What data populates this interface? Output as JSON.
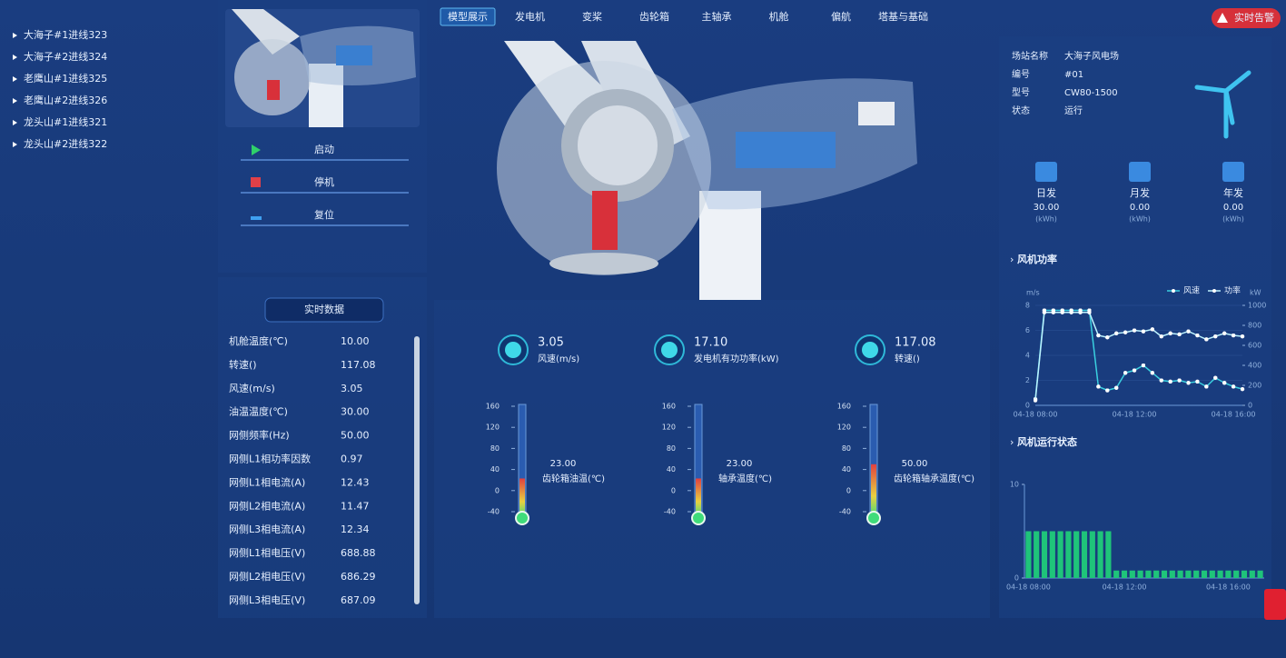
{
  "sidebar": {
    "items": [
      "大海子#1进线323",
      "大海子#2进线324",
      "老鹰山#1进线325",
      "老鹰山#2进线326",
      "龙头山#1进线321",
      "龙头山#2进线322"
    ],
    "selected": 2
  },
  "nav": {
    "tabs": [
      "模型展示",
      "发电机",
      "变桨",
      "齿轮箱",
      "主轴承",
      "机舱",
      "偏航",
      "塔基与基础"
    ],
    "active": 0
  },
  "alert_button": "实时告警",
  "controls": [
    "启动",
    "停机",
    "复位"
  ],
  "realtime": {
    "title": "实时数据",
    "rows": [
      [
        "机舱温度(℃)",
        "10.00"
      ],
      [
        "转速()",
        "117.08"
      ],
      [
        "风速(m/s)",
        "3.05"
      ],
      [
        "油温温度(℃)",
        "30.00"
      ],
      [
        "网侧频率(Hz)",
        "50.00"
      ],
      [
        "网侧L1相功率因数",
        "0.97"
      ],
      [
        "网侧L1相电流(A)",
        "12.43"
      ],
      [
        "网侧L2相电流(A)",
        "11.47"
      ],
      [
        "网侧L3相电流(A)",
        "12.34"
      ],
      [
        "网侧L1相电压(V)",
        "688.88"
      ],
      [
        "网侧L2相电压(V)",
        "686.29"
      ],
      [
        "网侧L3相电压(V)",
        "687.09"
      ]
    ]
  },
  "metrics": [
    {
      "value": "3.05",
      "label": "风速(m/s)"
    },
    {
      "value": "17.10",
      "label": "发电机有功功率(kW)"
    },
    {
      "value": "117.08",
      "label": "转速()"
    }
  ],
  "info": {
    "rows": [
      [
        "场站名称",
        "大海子风电场"
      ],
      [
        "编号",
        "#01"
      ],
      [
        "型号",
        "CW80-1500"
      ],
      [
        "状态",
        "运行"
      ]
    ]
  },
  "production": [
    {
      "label": "日发",
      "value": "30.00",
      "unit": "(kWh)"
    },
    {
      "label": "月发",
      "value": "0.00",
      "unit": "(kWh)"
    },
    {
      "label": "年发",
      "value": "0.00",
      "unit": "(kWh)"
    }
  ],
  "chart_data": [
    {
      "type": "thermometer",
      "title": "齿轮箱油温(℃)",
      "values": [
        23
      ],
      "value_labels": [
        "23.00"
      ],
      "ylim": [
        -40,
        160
      ],
      "yticks": [
        160,
        120,
        80,
        40,
        0,
        -40
      ]
    },
    {
      "type": "thermometer",
      "title": "轴承温度(℃)",
      "values": [
        23
      ],
      "value_labels": [
        "23.00"
      ],
      "ylim": [
        -40,
        160
      ],
      "yticks": [
        160,
        120,
        80,
        40,
        0,
        -40
      ]
    },
    {
      "type": "thermometer",
      "title": "齿轮箱轴承温度(℃)",
      "values": [
        50
      ],
      "value_labels": [
        "50.00"
      ],
      "ylim": [
        -40,
        160
      ],
      "yticks": [
        160,
        120,
        80,
        40,
        0,
        -40
      ]
    },
    {
      "type": "line",
      "title": "风机功率",
      "ylabel": "m/s",
      "y2label": "kW",
      "categories": [
        "04-18 08:00",
        null,
        null,
        null,
        null,
        null,
        null,
        null,
        null,
        null,
        null,
        "04-18 12:00",
        null,
        null,
        null,
        null,
        null,
        null,
        null,
        null,
        null,
        null,
        "04-18 16:00",
        null
      ],
      "series": [
        {
          "name": "风速",
          "color": "#3ad0e0",
          "values": [
            0.5,
            7.6,
            7.6,
            7.6,
            7.6,
            7.6,
            7.6,
            1.5,
            1.2,
            1.4,
            2.6,
            2.8,
            3.2,
            2.6,
            2.0,
            1.9,
            2.0,
            1.8,
            1.9,
            1.5,
            2.2,
            1.8,
            1.5,
            1.3
          ]
        },
        {
          "name": "功率",
          "color": "#bdf3ff",
          "axis": "y2",
          "values": [
            50,
            930,
            930,
            930,
            930,
            930,
            930,
            700,
            680,
            720,
            730,
            750,
            740,
            760,
            690,
            720,
            710,
            740,
            700,
            660,
            690,
            720,
            700,
            690
          ]
        }
      ],
      "ylim": [
        0,
        8
      ],
      "yticks": [
        0,
        2,
        4,
        6,
        8
      ],
      "y2lim": [
        0,
        1000
      ],
      "y2ticks": [
        0,
        200,
        400,
        600,
        800,
        1000
      ]
    },
    {
      "type": "bar",
      "title": "风机运行状态",
      "color": "#1fc47a",
      "categories": [
        "04-18 08:00",
        null,
        null,
        null,
        null,
        null,
        null,
        null,
        null,
        null,
        null,
        null,
        "04-18 12:00",
        null,
        null,
        null,
        null,
        null,
        null,
        null,
        null,
        null,
        null,
        null,
        null,
        "04-18 16:00",
        null,
        null,
        null,
        null
      ],
      "values": [
        5,
        5,
        5,
        5,
        5,
        5,
        5,
        5,
        5,
        5,
        5,
        0.8,
        0.8,
        0.8,
        0.8,
        0.8,
        0.8,
        0.8,
        0.8,
        0.8,
        0.8,
        0.8,
        0.8,
        0.8,
        0.8,
        0.8,
        0.8,
        0.8,
        0.8,
        0.8
      ],
      "ylim": [
        0,
        10
      ],
      "yticks": [
        0,
        10
      ]
    }
  ]
}
